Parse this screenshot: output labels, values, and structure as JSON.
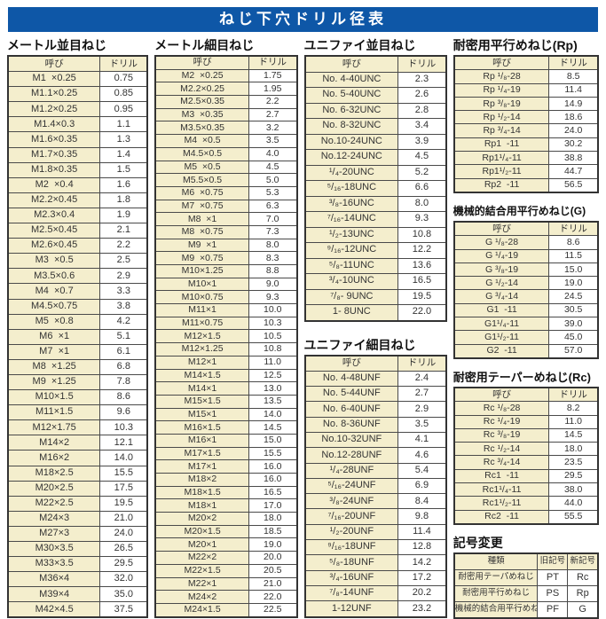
{
  "title": "ねじ下穴ドリル径表",
  "column_headers": {
    "name": "呼び",
    "drill": "ドリル"
  },
  "tables": [
    {
      "key": "metric_coarse",
      "heading": "メートル並目ねじ",
      "rows": [
        [
          "M1  ×0.25",
          "0.75"
        ],
        [
          "M1.1×0.25",
          "0.85"
        ],
        [
          "M1.2×0.25",
          "0.95"
        ],
        [
          "M1.4×0.3",
          "1.1"
        ],
        [
          "M1.6×0.35",
          "1.3"
        ],
        [
          "M1.7×0.35",
          "1.4"
        ],
        [
          "M1.8×0.35",
          "1.5"
        ],
        [
          "M2  ×0.4",
          "1.6"
        ],
        [
          "M2.2×0.45",
          "1.8"
        ],
        [
          "M2.3×0.4",
          "1.9"
        ],
        [
          "M2.5×0.45",
          "2.1"
        ],
        [
          "M2.6×0.45",
          "2.2"
        ],
        [
          "M3  ×0.5",
          "2.5"
        ],
        [
          "M3.5×0.6",
          "2.9"
        ],
        [
          "M4  ×0.7",
          "3.3"
        ],
        [
          "M4.5×0.75",
          "3.8"
        ],
        [
          "M5  ×0.8",
          "4.2"
        ],
        [
          "M6  ×1",
          "5.1"
        ],
        [
          "M7  ×1",
          "6.1"
        ],
        [
          "M8  ×1.25",
          "6.8"
        ],
        [
          "M9  ×1.25",
          "7.8"
        ],
        [
          "M10×1.5",
          "8.6"
        ],
        [
          "M11×1.5",
          "9.6"
        ],
        [
          "M12×1.75",
          "10.3"
        ],
        [
          "M14×2",
          "12.1"
        ],
        [
          "M16×2",
          "14.0"
        ],
        [
          "M18×2.5",
          "15.5"
        ],
        [
          "M20×2.5",
          "17.5"
        ],
        [
          "M22×2.5",
          "19.5"
        ],
        [
          "M24×3",
          "21.0"
        ],
        [
          "M27×3",
          "24.0"
        ],
        [
          "M30×3.5",
          "26.5"
        ],
        [
          "M33×3.5",
          "29.5"
        ],
        [
          "M36×4",
          "32.0"
        ],
        [
          "M39×4",
          "35.0"
        ],
        [
          "M42×4.5",
          "37.5"
        ]
      ]
    },
    {
      "key": "metric_fine",
      "heading": "メートル細目ねじ",
      "rows": [
        [
          "M2  ×0.25",
          "1.75"
        ],
        [
          "M2.2×0.25",
          "1.95"
        ],
        [
          "M2.5×0.35",
          "2.2"
        ],
        [
          "M3  ×0.35",
          "2.7"
        ],
        [
          "M3.5×0.35",
          "3.2"
        ],
        [
          "M4  ×0.5",
          "3.5"
        ],
        [
          "M4.5×0.5",
          "4.0"
        ],
        [
          "M5  ×0.5",
          "4.5"
        ],
        [
          "M5.5×0.5",
          "5.0"
        ],
        [
          "M6  ×0.75",
          "5.3"
        ],
        [
          "M7  ×0.75",
          "6.3"
        ],
        [
          "M8  ×1",
          "7.0"
        ],
        [
          "M8  ×0.75",
          "7.3"
        ],
        [
          "M9  ×1",
          "8.0"
        ],
        [
          "M9  ×0.75",
          "8.3"
        ],
        [
          "M10×1.25",
          "8.8"
        ],
        [
          "M10×1",
          "9.0"
        ],
        [
          "M10×0.75",
          "9.3"
        ],
        [
          "M11×1",
          "10.0"
        ],
        [
          "M11×0.75",
          "10.3"
        ],
        [
          "M12×1.5",
          "10.5"
        ],
        [
          "M12×1.25",
          "10.8"
        ],
        [
          "M12×1",
          "11.0"
        ],
        [
          "M14×1.5",
          "12.5"
        ],
        [
          "M14×1",
          "13.0"
        ],
        [
          "M15×1.5",
          "13.5"
        ],
        [
          "M15×1",
          "14.0"
        ],
        [
          "M16×1.5",
          "14.5"
        ],
        [
          "M16×1",
          "15.0"
        ],
        [
          "M17×1.5",
          "15.5"
        ],
        [
          "M17×1",
          "16.0"
        ],
        [
          "M18×2",
          "16.0"
        ],
        [
          "M18×1.5",
          "16.5"
        ],
        [
          "M18×1",
          "17.0"
        ],
        [
          "M20×2",
          "18.0"
        ],
        [
          "M20×1.5",
          "18.5"
        ],
        [
          "M20×1",
          "19.0"
        ],
        [
          "M22×2",
          "20.0"
        ],
        [
          "M22×1.5",
          "20.5"
        ],
        [
          "M22×1",
          "21.0"
        ],
        [
          "M24×2",
          "22.0"
        ],
        [
          "M24×1.5",
          "22.5"
        ]
      ]
    },
    {
      "key": "unified_coarse",
      "heading": "ユニファイ並目ねじ",
      "rows": [
        [
          "No. 4-40UNC",
          "2.3"
        ],
        [
          "No. 5-40UNC",
          "2.6"
        ],
        [
          "No. 6-32UNC",
          "2.8"
        ],
        [
          "No. 8-32UNC",
          "3.4"
        ],
        [
          "No.10-24UNC",
          "3.9"
        ],
        [
          "No.12-24UNC",
          "4.5"
        ],
        [
          "¹/₄-20UNC",
          "5.2"
        ],
        [
          "⁵/₁₆-18UNC",
          "6.6"
        ],
        [
          "³/₈-16UNC",
          "8.0"
        ],
        [
          "⁷/₁₆-14UNC",
          "9.3"
        ],
        [
          "¹/₂-13UNC",
          "10.8"
        ],
        [
          "⁹/₁₆-12UNC",
          "12.2"
        ],
        [
          "⁵/₈-11UNC",
          "13.6"
        ],
        [
          "³/₄-10UNC",
          "16.5"
        ],
        [
          "⁷/₈- 9UNC",
          "19.5"
        ],
        [
          "1- 8UNC",
          "22.0"
        ]
      ]
    },
    {
      "key": "unified_fine",
      "heading": "ユニファイ細目ねじ",
      "rows": [
        [
          "No. 4-48UNF",
          "2.4"
        ],
        [
          "No. 5-44UNF",
          "2.7"
        ],
        [
          "No. 6-40UNF",
          "2.9"
        ],
        [
          "No. 8-36UNF",
          "3.5"
        ],
        [
          "No.10-32UNF",
          "4.1"
        ],
        [
          "No.12-28UNF",
          "4.6"
        ],
        [
          "¹/₄-28UNF",
          "5.4"
        ],
        [
          "⁵/₁₆-24UNF",
          "6.9"
        ],
        [
          "³/₈-24UNF",
          "8.4"
        ],
        [
          "⁷/₁₆-20UNF",
          "9.8"
        ],
        [
          "¹/₂-20UNF",
          "11.4"
        ],
        [
          "⁹/₁₆-18UNF",
          "12.8"
        ],
        [
          "⁵/₈-18UNF",
          "14.2"
        ],
        [
          "³/₄-16UNF",
          "17.2"
        ],
        [
          "⁷/₈-14UNF",
          "20.2"
        ],
        [
          "1-12UNF",
          "23.2"
        ]
      ]
    },
    {
      "key": "rp_parallel",
      "heading": "耐密用平行めねじ(Rp)",
      "rows": [
        [
          "Rp ¹/₈-28",
          "8.5"
        ],
        [
          "Rp ¹/₄-19",
          "11.4"
        ],
        [
          "Rp ³/₈-19",
          "14.9"
        ],
        [
          "Rp ¹/₂-14",
          "18.6"
        ],
        [
          "Rp ³/₄-14",
          "24.0"
        ],
        [
          "Rp1  -11",
          "30.2"
        ],
        [
          "Rp1¹/₄-11",
          "38.8"
        ],
        [
          "Rp1¹/₂-11",
          "44.7"
        ],
        [
          "Rp2  -11",
          "56.5"
        ]
      ]
    },
    {
      "key": "g_parallel",
      "heading": "機械的結合用平行めねじ(G)",
      "rows": [
        [
          "G ¹/₈-28",
          "8.6"
        ],
        [
          "G ¹/₄-19",
          "11.5"
        ],
        [
          "G ³/₈-19",
          "15.0"
        ],
        [
          "G ¹/₂-14",
          "19.0"
        ],
        [
          "G ³/₄-14",
          "24.5"
        ],
        [
          "G1  -11",
          "30.5"
        ],
        [
          "G1¹/₄-11",
          "39.0"
        ],
        [
          "G1¹/₂-11",
          "45.0"
        ],
        [
          "G2  -11",
          "57.0"
        ]
      ]
    },
    {
      "key": "rc_taper",
      "heading": "耐密用テーパーめねじ(Rc)",
      "rows": [
        [
          "Rc ¹/₈-28",
          "8.2"
        ],
        [
          "Rc ¹/₄-19",
          "11.0"
        ],
        [
          "Rc ³/₈-19",
          "14.5"
        ],
        [
          "Rc ¹/₂-14",
          "18.0"
        ],
        [
          "Rc ³/₄-14",
          "23.5"
        ],
        [
          "Rc1  -11",
          "29.5"
        ],
        [
          "Rc1¹/₄-11",
          "38.0"
        ],
        [
          "Rc1¹/₂-11",
          "44.0"
        ],
        [
          "Rc2  -11",
          "55.5"
        ]
      ]
    }
  ],
  "symbol_change": {
    "heading": "記号変更",
    "headers": [
      "種類",
      "旧記号",
      "新記号"
    ],
    "rows": [
      [
        "耐密用テーパめねじ",
        "PT",
        "Rc"
      ],
      [
        "耐密用平行めねじ",
        "PS",
        "Rp"
      ],
      [
        "機械的結合用平行めねじ",
        "PF",
        "G"
      ]
    ]
  },
  "colors": {
    "title_bar": "#0e57a7",
    "cell_cream": "#f4eecd",
    "border": "#3c3c3c"
  }
}
